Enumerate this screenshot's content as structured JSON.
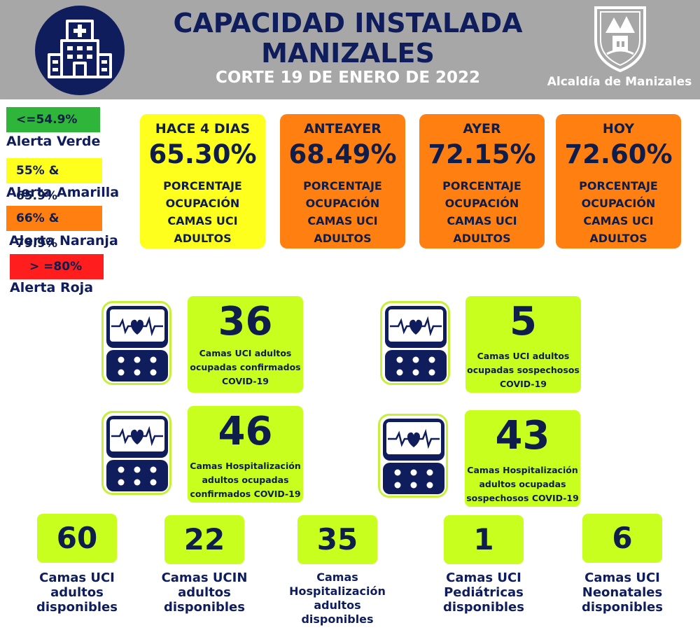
{
  "header": {
    "title_line1": "CAPACIDAD INSTALADA",
    "title_line2": "MANIZALES",
    "subtitle": "CORTE 19 DE ENERO DE 2022",
    "org": "Alcaldía de Manizales",
    "icon": "hospital-icon",
    "logo": "alcaldia-crest-logo"
  },
  "legend": [
    {
      "range": "<=54.9%",
      "label": "Alerta Verde",
      "color": "#2eb53a"
    },
    {
      "range": "55% & 65.9%",
      "label": "Alerta Amarilla",
      "color": "#ffff1e"
    },
    {
      "range": "66% & 79.9%",
      "label": "Alerta Naranja",
      "color": "#ff7f11"
    },
    {
      "range": "> =80%",
      "label": "Alerta Roja",
      "color": "#ff1d1d"
    }
  ],
  "occupancy": [
    {
      "period": "HACE 4 DIAS",
      "value": "65.30%",
      "line1": "PORCENTAJE",
      "line2": "OCUPACIÓN",
      "line3": "CAMAS UCI",
      "line4": "ADULTOS",
      "color": "#ffff1e"
    },
    {
      "period": "ANTEAYER",
      "value": "68.49%",
      "line1": "PORCENTAJE",
      "line2": "OCUPACIÓN",
      "line3": "CAMAS UCI",
      "line4": "ADULTOS",
      "color": "#ff7f11"
    },
    {
      "period": "AYER",
      "value": "72.15%",
      "line1": "PORCENTAJE",
      "line2": "OCUPACIÓN",
      "line3": "CAMAS UCI",
      "line4": "ADULTOS",
      "color": "#ff7f11"
    },
    {
      "period": "HOY",
      "value": "72.60%",
      "line1": "PORCENTAJE",
      "line2": "OCUPACIÓN",
      "line3": "CAMAS UCI",
      "line4": "ADULTOS",
      "color": "#ff7f11"
    }
  ],
  "stats": [
    {
      "value": "36",
      "line1": "Camas UCI adultos",
      "line2": "ocupadas confirmados",
      "line3": "COVID-19",
      "icon": "heart-monitor-icon"
    },
    {
      "value": "5",
      "line1": "Camas UCI adultos",
      "line2": "ocupadas sospechosos",
      "line3": "COVID-19",
      "icon": "heart-monitor-icon"
    },
    {
      "value": "46",
      "line1": "Camas  Hospitalización",
      "line2": "adultos ocupadas",
      "line3": "confirmados COVID-19",
      "icon": "heart-monitor-icon"
    },
    {
      "value": "43",
      "line1": "Camas  Hospitalización",
      "line2": "adultos ocupadas",
      "line3": "sospechosos COVID-19",
      "icon": "heart-monitor-icon"
    }
  ],
  "available": [
    {
      "value": "60",
      "line1": "Camas UCI",
      "line2": "adultos",
      "line3": "disponibles"
    },
    {
      "value": "22",
      "line1": "Camas UCIN",
      "line2": "adultos",
      "line3": "disponibles"
    },
    {
      "value": "35",
      "line1": "Camas",
      "line2": "Hospitalización",
      "line3": "adultos",
      "line4": "disponibles"
    },
    {
      "value": "1",
      "line1": "Camas  UCI",
      "line2": "Pediátricas",
      "line3": "disponibles"
    },
    {
      "value": "6",
      "line1": "Camas  UCI",
      "line2": "Neonatales",
      "line3": "disponibles"
    }
  ]
}
